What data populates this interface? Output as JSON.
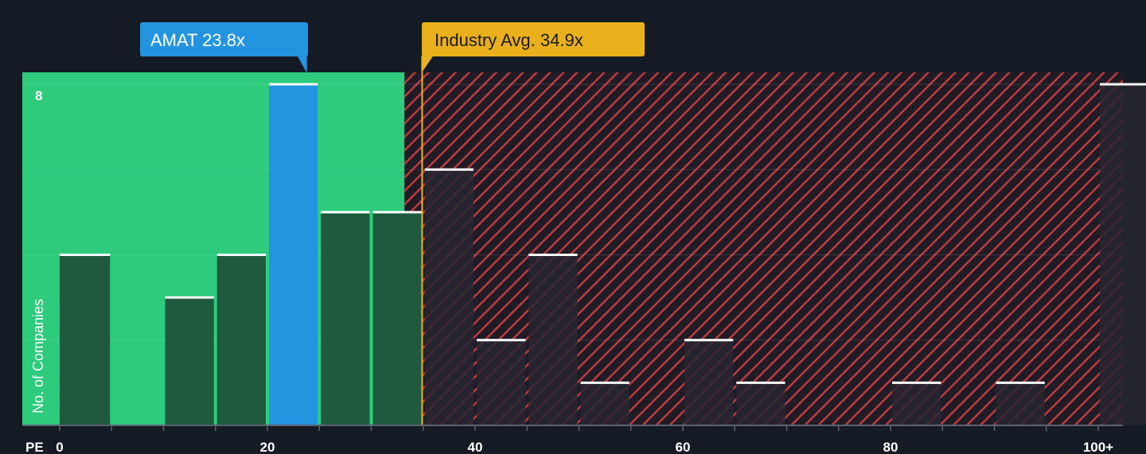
{
  "chart_data": {
    "type": "bar",
    "xlabel": "PE",
    "ylabel": "No. of Companies",
    "xlim": [
      0,
      100
    ],
    "ylim": [
      0,
      8
    ],
    "x_ticks": [
      "0",
      "20",
      "40",
      "60",
      "80",
      "100+"
    ],
    "y_ticks": [
      "8"
    ],
    "bins": [
      {
        "x0": 0,
        "x1": 5,
        "value": 4
      },
      {
        "x0": 5,
        "x1": 10,
        "value": 0
      },
      {
        "x0": 10,
        "x1": 15,
        "value": 3
      },
      {
        "x0": 15,
        "x1": 20,
        "value": 4
      },
      {
        "x0": 20,
        "x1": 25,
        "value": 8,
        "highlight": true
      },
      {
        "x0": 25,
        "x1": 30,
        "value": 5
      },
      {
        "x0": 30,
        "x1": 35,
        "value": 5
      },
      {
        "x0": 35,
        "x1": 40,
        "value": 6
      },
      {
        "x0": 40,
        "x1": 45,
        "value": 2
      },
      {
        "x0": 45,
        "x1": 50,
        "value": 4
      },
      {
        "x0": 50,
        "x1": 55,
        "value": 1
      },
      {
        "x0": 55,
        "x1": 60,
        "value": 0
      },
      {
        "x0": 60,
        "x1": 65,
        "value": 2
      },
      {
        "x0": 65,
        "x1": 70,
        "value": 1
      },
      {
        "x0": 70,
        "x1": 75,
        "value": 0
      },
      {
        "x0": 75,
        "x1": 80,
        "value": 0
      },
      {
        "x0": 80,
        "x1": 85,
        "value": 1
      },
      {
        "x0": 85,
        "x1": 90,
        "value": 0
      },
      {
        "x0": 90,
        "x1": 95,
        "value": 1
      },
      {
        "x0": 95,
        "x1": 100,
        "value": 0
      },
      {
        "x0": 100,
        "x1": 105,
        "value": 8
      }
    ],
    "company": {
      "label": "AMAT 23.8x",
      "value": 23.8
    },
    "industry_avg": {
      "label": "Industry Avg. 34.9x",
      "value": 34.9
    },
    "fair_zone_end": 33.2,
    "colors": {
      "background": "#151b24",
      "fair_zone": "#2ecb7d",
      "bar_in_fair": "#1f5a3e",
      "bar_overvalued": "#272631",
      "highlight_bar": "#2394e0",
      "hatch_stripe": "#c0393f",
      "hatch_bg": "#1f1c26",
      "industry_line": "#e9b01c",
      "bar_cap": "#ffffff"
    }
  }
}
